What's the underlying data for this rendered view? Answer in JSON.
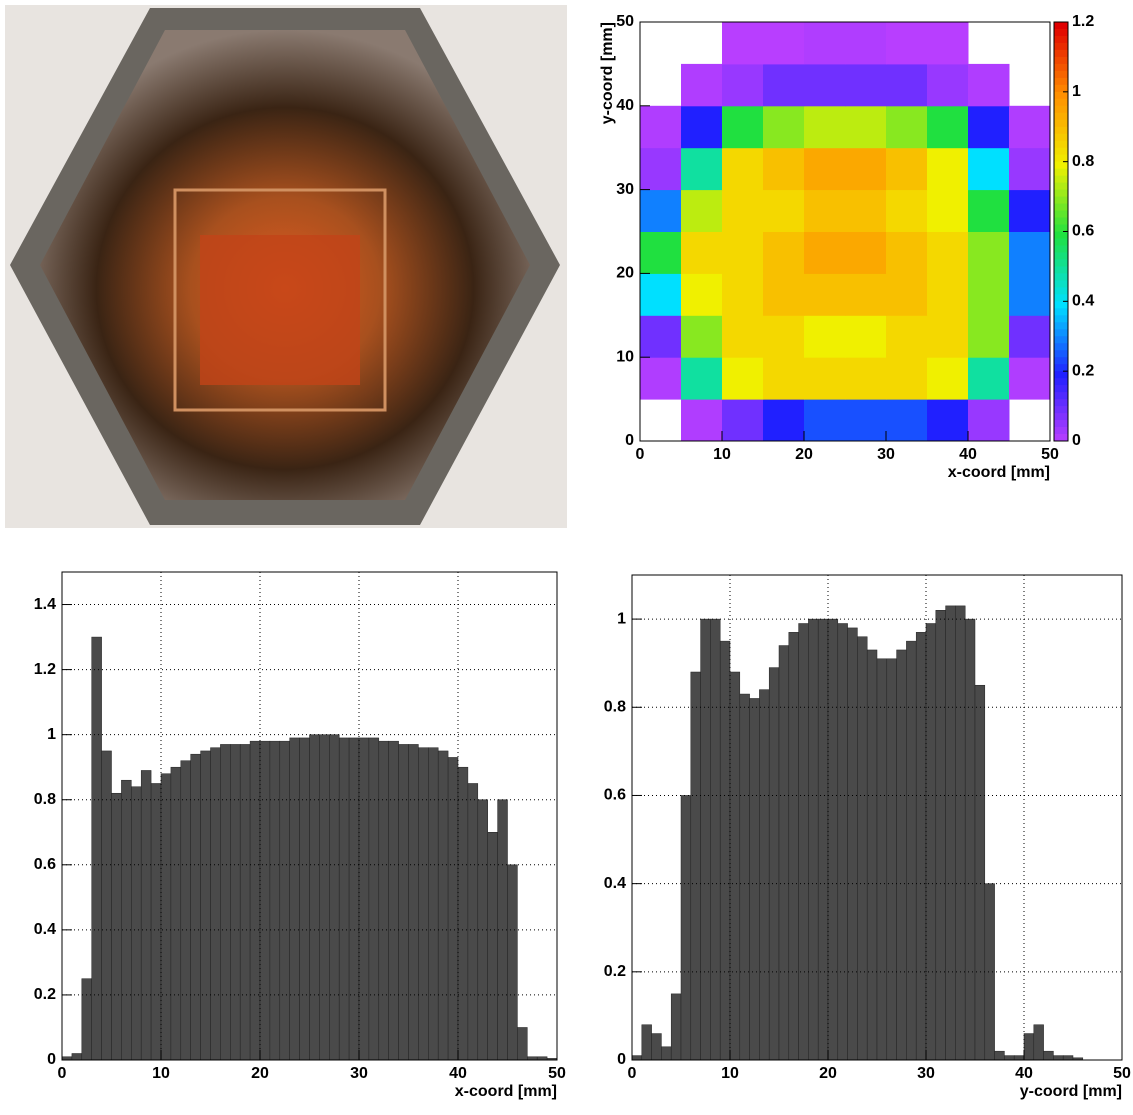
{
  "chart_data": [
    {
      "type": "heatmap",
      "xlabel": "x-coord [mm]",
      "ylabel": "y-coord [mm]",
      "xbins": [
        0,
        5,
        10,
        15,
        20,
        25,
        30,
        35,
        40,
        45,
        50
      ],
      "ybins": [
        0,
        5,
        10,
        15,
        20,
        25,
        30,
        35,
        40,
        45,
        50
      ],
      "values": [
        [
          0,
          0.02,
          0.1,
          0.2,
          0.25,
          0.25,
          0.25,
          0.2,
          0.05,
          0
        ],
        [
          0.02,
          0.5,
          0.8,
          0.85,
          0.85,
          0.85,
          0.85,
          0.8,
          0.5,
          0.02
        ],
        [
          0.1,
          0.7,
          0.85,
          0.85,
          0.8,
          0.8,
          0.85,
          0.85,
          0.7,
          0.1
        ],
        [
          0.4,
          0.8,
          0.85,
          0.9,
          0.9,
          0.9,
          0.9,
          0.85,
          0.7,
          0.3
        ],
        [
          0.6,
          0.85,
          0.85,
          0.9,
          0.95,
          0.95,
          0.9,
          0.85,
          0.7,
          0.3
        ],
        [
          0.3,
          0.75,
          0.85,
          0.85,
          0.9,
          0.9,
          0.85,
          0.8,
          0.6,
          0.2
        ],
        [
          0.05,
          0.5,
          0.85,
          0.9,
          0.95,
          0.95,
          0.9,
          0.8,
          0.4,
          0.05
        ],
        [
          0.02,
          0.2,
          0.6,
          0.7,
          0.75,
          0.75,
          0.7,
          0.6,
          0.2,
          0.02
        ],
        [
          0,
          0.02,
          0.05,
          0.1,
          0.1,
          0.1,
          0.1,
          0.05,
          0.02,
          0
        ],
        [
          0,
          0,
          0.01,
          0.01,
          0.02,
          0.02,
          0.01,
          0.01,
          0,
          0
        ]
      ],
      "xlim": [
        0,
        50
      ],
      "ylim": [
        0,
        50
      ],
      "xticks": [
        0,
        10,
        20,
        30,
        40,
        50
      ],
      "yticks": [
        0,
        10,
        20,
        30,
        40,
        50
      ],
      "zlim": [
        0,
        1.2
      ],
      "zticks": [
        0,
        0.2,
        0.4,
        0.6,
        0.8,
        1,
        1.2
      ],
      "colors": [
        "#c040ff",
        "#2020ff",
        "#00e0ff",
        "#20e040",
        "#f0f000",
        "#ff9000",
        "#e00000"
      ],
      "grid": false
    },
    {
      "type": "histogram",
      "xlabel": "x-coord [mm]",
      "bins": [
        0,
        1,
        2,
        3,
        4,
        5,
        6,
        7,
        8,
        9,
        10,
        11,
        12,
        13,
        14,
        15,
        16,
        17,
        18,
        19,
        20,
        21,
        22,
        23,
        24,
        25,
        26,
        27,
        28,
        29,
        30,
        31,
        32,
        33,
        34,
        35,
        36,
        37,
        38,
        39,
        40,
        41,
        42,
        43,
        44,
        45,
        46,
        47,
        48,
        49,
        50
      ],
      "values": [
        0.01,
        0.02,
        0.25,
        1.3,
        0.95,
        0.82,
        0.86,
        0.84,
        0.89,
        0.85,
        0.88,
        0.9,
        0.92,
        0.94,
        0.95,
        0.96,
        0.97,
        0.97,
        0.97,
        0.98,
        0.98,
        0.98,
        0.98,
        0.99,
        0.99,
        1.0,
        1.0,
        1.0,
        0.99,
        0.99,
        0.99,
        0.99,
        0.98,
        0.98,
        0.97,
        0.97,
        0.96,
        0.96,
        0.95,
        0.93,
        0.9,
        0.85,
        0.8,
        0.7,
        0.8,
        0.6,
        0.1,
        0.01,
        0.01,
        0.005
      ],
      "color": "#4a4a4a",
      "xlim": [
        0,
        50
      ],
      "ylim": [
        0,
        1.5
      ],
      "xticks": [
        0,
        10,
        20,
        30,
        40,
        50
      ],
      "yticks": [
        0,
        0.2,
        0.4,
        0.6,
        0.8,
        1,
        1.2,
        1.4
      ],
      "grid": true
    },
    {
      "type": "histogram",
      "xlabel": "y-coord [mm]",
      "bins": [
        0,
        1,
        2,
        3,
        4,
        5,
        6,
        7,
        8,
        9,
        10,
        11,
        12,
        13,
        14,
        15,
        16,
        17,
        18,
        19,
        20,
        21,
        22,
        23,
        24,
        25,
        26,
        27,
        28,
        29,
        30,
        31,
        32,
        33,
        34,
        35,
        36,
        37,
        38,
        39,
        40,
        41,
        42,
        43,
        44,
        45,
        46,
        47,
        48,
        49,
        50
      ],
      "values": [
        0.01,
        0.08,
        0.06,
        0.03,
        0.15,
        0.6,
        0.88,
        1.0,
        1.0,
        0.95,
        0.88,
        0.83,
        0.82,
        0.84,
        0.89,
        0.94,
        0.97,
        0.99,
        1.0,
        1.0,
        1.0,
        0.99,
        0.98,
        0.96,
        0.93,
        0.91,
        0.91,
        0.93,
        0.95,
        0.97,
        0.99,
        1.02,
        1.03,
        1.03,
        1.0,
        0.85,
        0.4,
        0.02,
        0.01,
        0.01,
        0.06,
        0.08,
        0.02,
        0.01,
        0.01,
        0.005,
        0,
        0,
        0,
        0
      ],
      "color": "#4a4a4a",
      "xlim": [
        0,
        50
      ],
      "ylim": [
        0,
        1.1
      ],
      "xticks": [
        0,
        10,
        20,
        30,
        40,
        50
      ],
      "yticks": [
        0,
        0.2,
        0.4,
        0.6,
        0.8,
        1
      ],
      "grid": true
    }
  ]
}
